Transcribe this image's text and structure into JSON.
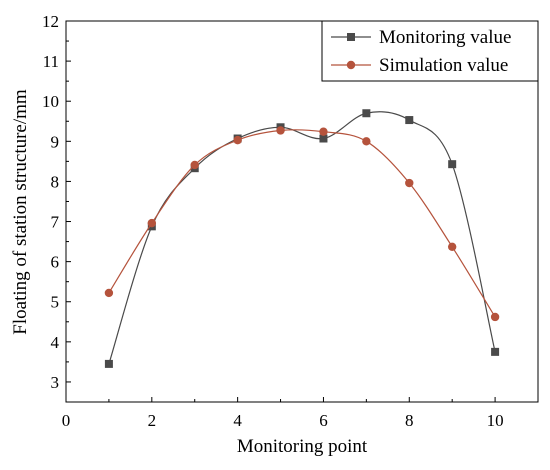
{
  "chart_data": {
    "type": "line",
    "xlabel": "Monitoring point",
    "ylabel": "Floating of station structure/mm",
    "xlim": [
      0,
      11
    ],
    "ylim": [
      2.5,
      12
    ],
    "xticks": [
      0,
      2,
      4,
      6,
      8,
      10
    ],
    "yticks": [
      3,
      4,
      5,
      6,
      7,
      8,
      9,
      10,
      11,
      12
    ],
    "legend_position": "top-right",
    "grid": false,
    "x": [
      1,
      2,
      3,
      4,
      5,
      6,
      7,
      8,
      9,
      10
    ],
    "series": [
      {
        "name": "Monitoring value",
        "marker": "square",
        "color": "#4a4a4a",
        "values": [
          3.45,
          6.88,
          8.33,
          9.07,
          9.35,
          9.07,
          9.7,
          9.53,
          8.43,
          3.75
        ]
      },
      {
        "name": "Simulation value",
        "marker": "circle",
        "color": "#b5533c",
        "values": [
          5.22,
          6.96,
          8.41,
          9.03,
          9.27,
          9.24,
          9.0,
          7.96,
          6.37,
          4.62
        ]
      }
    ]
  }
}
